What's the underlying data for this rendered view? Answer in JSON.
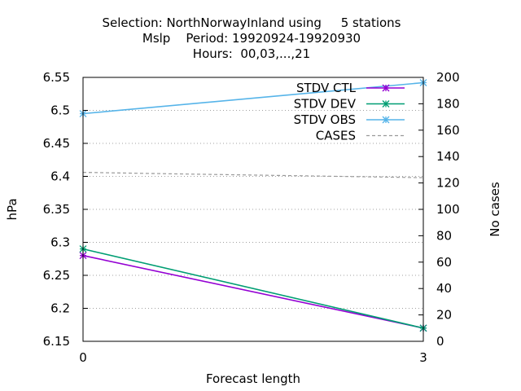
{
  "chart_data": {
    "type": "line",
    "title_lines": [
      "Selection: NorthNorwayInland using     5 stations",
      "Mslp    Period: 19920924-19920930",
      "Hours:  00,03,...,21"
    ],
    "xlabel": "Forecast length",
    "ylabel": "hPa",
    "y2label": "No cases",
    "x_ticks": [
      0,
      3
    ],
    "xlim": [
      0,
      3
    ],
    "ylim": [
      6.15,
      6.55
    ],
    "y_ticks": [
      "6.55",
      "6.5",
      "6.45",
      "6.4",
      "6.35",
      "6.3",
      "6.25",
      "6.2",
      "6.15"
    ],
    "y2lim": [
      0,
      200
    ],
    "y2_ticks": [
      "200",
      "180",
      "160",
      "140",
      "120",
      "100",
      "80",
      "60",
      "40",
      "20",
      "0"
    ],
    "grid": true,
    "legend_position": "top-right",
    "series": [
      {
        "name": "STDV CTL",
        "axis": "y",
        "color": "#9400d3",
        "marker": "star",
        "dash": "solid",
        "x": [
          0,
          3
        ],
        "y": [
          6.28,
          6.17
        ]
      },
      {
        "name": "STDV DEV",
        "axis": "y",
        "color": "#009e73",
        "marker": "star",
        "dash": "solid",
        "x": [
          0,
          3
        ],
        "y": [
          6.29,
          6.17
        ]
      },
      {
        "name": "STDV OBS",
        "axis": "y",
        "color": "#56b4e9",
        "marker": "star",
        "dash": "solid",
        "x": [
          0,
          3
        ],
        "y": [
          6.495,
          6.542
        ]
      },
      {
        "name": "CASES",
        "axis": "y2",
        "color": "#999999",
        "marker": "none",
        "dash": "dashed",
        "x": [
          0,
          0.75,
          1.5,
          2.25,
          3
        ],
        "y": [
          128,
          127,
          126,
          125,
          124
        ]
      }
    ]
  }
}
